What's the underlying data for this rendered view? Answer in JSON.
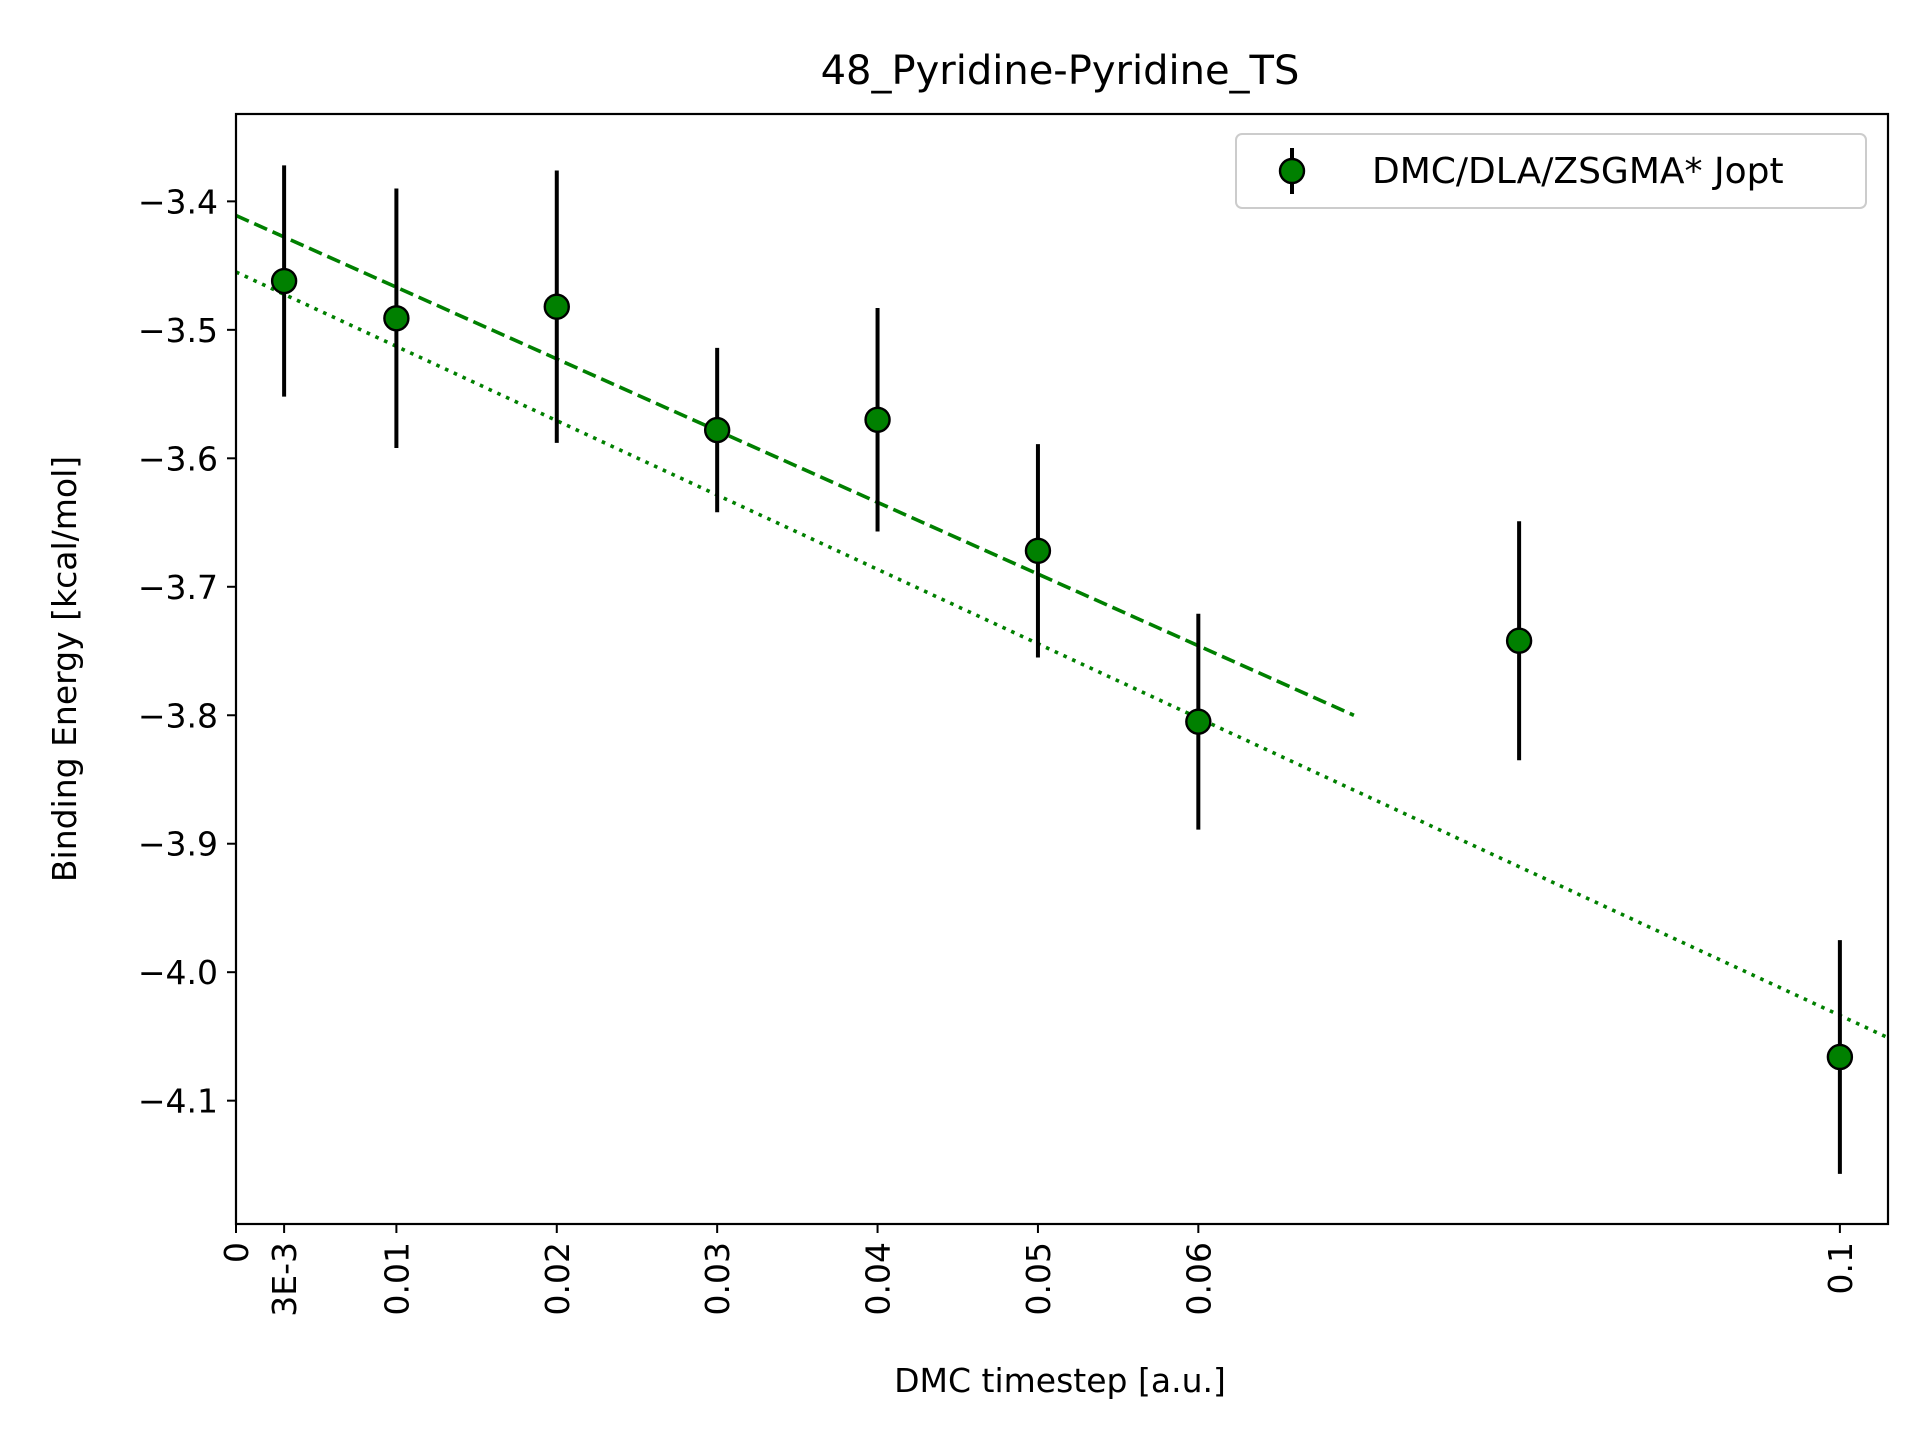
{
  "chart_data": {
    "type": "scatter",
    "title": "48_Pyridine-Pyridine_TS",
    "xlabel": "DMC timestep [a.u.]",
    "ylabel": "Binding Energy [kcal/mol]",
    "xlim": [
      0,
      0.103
    ],
    "ylim": [
      -4.196,
      -3.332
    ],
    "xticks": [
      {
        "value": 0,
        "label": "0"
      },
      {
        "value": 0.003,
        "label": "3E-3"
      },
      {
        "value": 0.01,
        "label": "0.01"
      },
      {
        "value": 0.02,
        "label": "0.02"
      },
      {
        "value": 0.03,
        "label": "0.03"
      },
      {
        "value": 0.04,
        "label": "0.04"
      },
      {
        "value": 0.05,
        "label": "0.05"
      },
      {
        "value": 0.06,
        "label": "0.06"
      },
      {
        "value": 0.1,
        "label": "0.1"
      }
    ],
    "yticks": [
      {
        "value": -3.4,
        "label": "−3.4"
      },
      {
        "value": -3.5,
        "label": "−3.5"
      },
      {
        "value": -3.6,
        "label": "−3.6"
      },
      {
        "value": -3.7,
        "label": "−3.7"
      },
      {
        "value": -3.8,
        "label": "−3.8"
      },
      {
        "value": -3.9,
        "label": "−3.9"
      },
      {
        "value": -4.0,
        "label": "−4.0"
      },
      {
        "value": -4.1,
        "label": "−4.1"
      }
    ],
    "series": [
      {
        "name": "DMC/DLA/ZSGMA* Jopt",
        "color": "#008000",
        "marker_edge": "#000000",
        "errorbar_color": "#000000",
        "points": [
          {
            "x": 0.003,
            "y": -3.462,
            "err": 0.09
          },
          {
            "x": 0.01,
            "y": -3.491,
            "err": 0.101
          },
          {
            "x": 0.02,
            "y": -3.482,
            "err": 0.106
          },
          {
            "x": 0.03,
            "y": -3.578,
            "err": 0.064
          },
          {
            "x": 0.04,
            "y": -3.57,
            "err": 0.087
          },
          {
            "x": 0.05,
            "y": -3.672,
            "err": 0.083
          },
          {
            "x": 0.06,
            "y": -3.805,
            "err": 0.084
          },
          {
            "x": 0.08,
            "y": -3.742,
            "err": 0.093
          },
          {
            "x": 0.1,
            "y": -4.066,
            "err": 0.091
          }
        ]
      }
    ],
    "fits": [
      {
        "style": "dashed",
        "color": "#008000",
        "points": [
          [
            0,
            -3.411
          ],
          [
            0.0697,
            -3.8
          ]
        ]
      },
      {
        "style": "dotted",
        "color": "#008000",
        "points": [
          [
            0,
            -3.455
          ],
          [
            0.103,
            -4.051
          ]
        ]
      }
    ],
    "grid": false,
    "legend_position": "top-right"
  }
}
